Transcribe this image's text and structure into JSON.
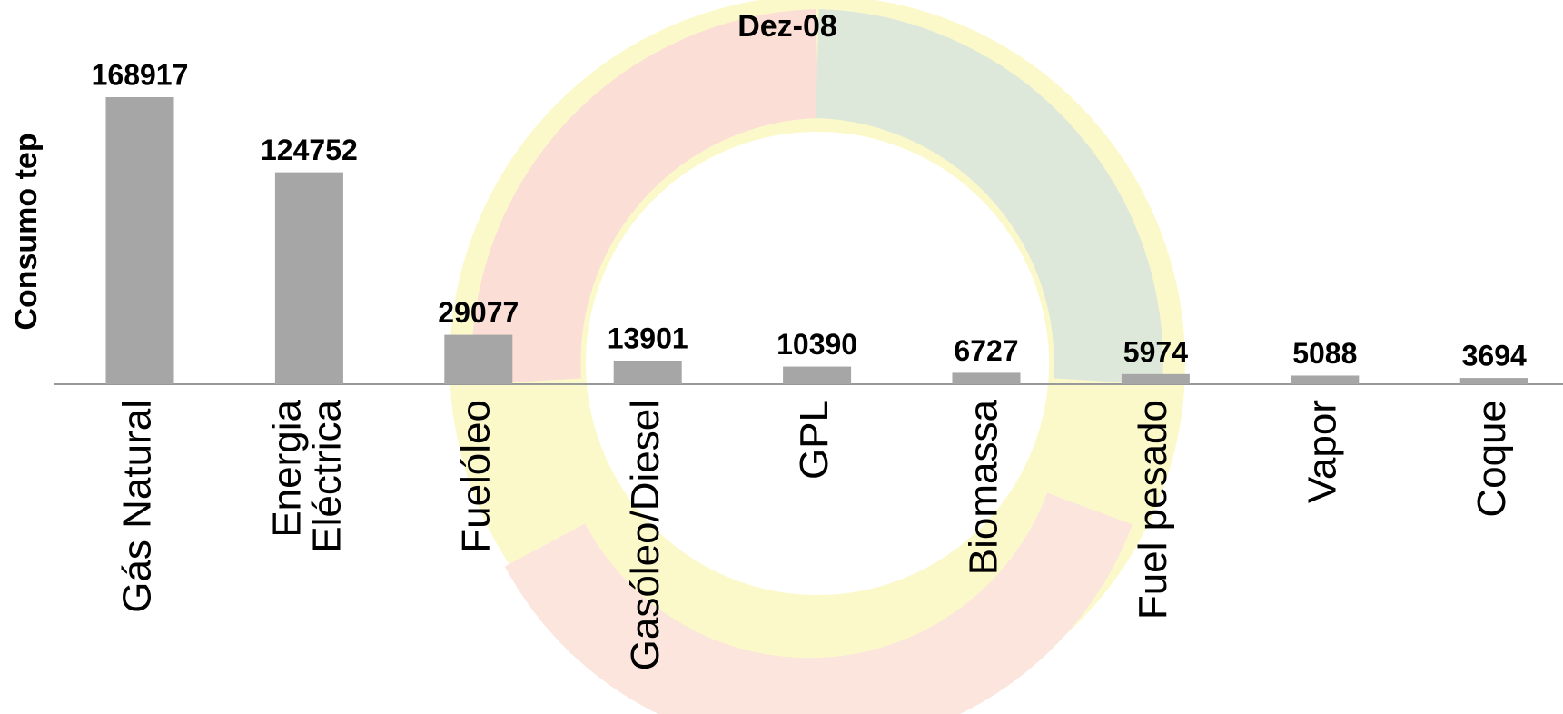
{
  "chart_data": {
    "type": "bar",
    "title": "Dez-08",
    "y_label": "Consumo tep",
    "categories": [
      "Gás Natural",
      "Energia Eléctrica",
      "Fuelóleo",
      "Gasóleo/Diesel",
      "GPL",
      "Biomassa",
      "Fuel pesado",
      "Vapor",
      "Coque"
    ],
    "values": [
      168917,
      124752,
      29077,
      13901,
      10390,
      6727,
      5974,
      5088,
      3694
    ],
    "color": "#a6a6a6"
  }
}
